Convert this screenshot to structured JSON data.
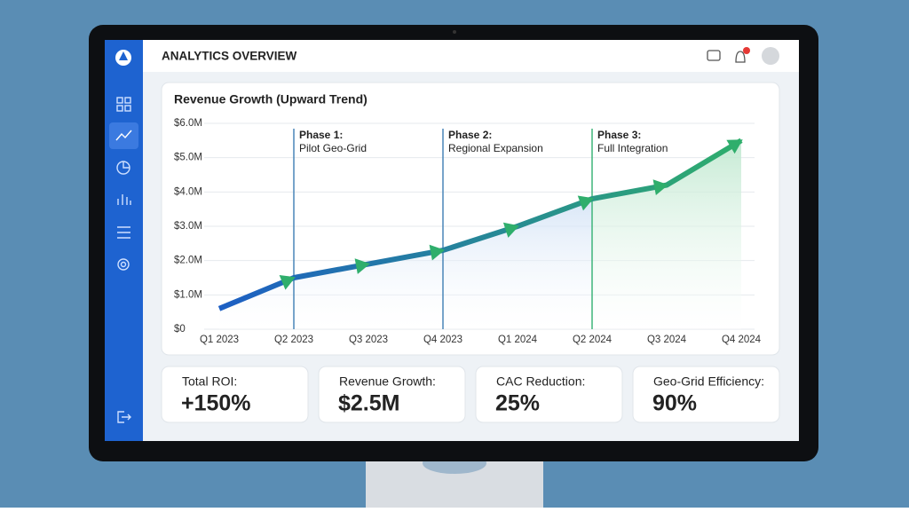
{
  "header": {
    "title": "ANALYTICS OVERVIEW"
  },
  "chart_data": {
    "type": "line",
    "title": "Revenue Growth (Upward Trend)",
    "categories": [
      "Q1 2023",
      "Q2 2023",
      "Q3 2023",
      "Q4 2023",
      "Q1 2024",
      "Q2 2024",
      "Q3 2024",
      "Q4 2024"
    ],
    "values": [
      0.6,
      1.5,
      1.9,
      2.3,
      3.0,
      3.8,
      4.2,
      5.5
    ],
    "ylim": [
      0,
      6
    ],
    "yticks": [
      {
        "value": 0,
        "label": "$0"
      },
      {
        "value": 1,
        "label": "$1.0M"
      },
      {
        "value": 2,
        "label": "$2.0M"
      },
      {
        "value": 3,
        "label": "$3.0M"
      },
      {
        "value": 4,
        "label": "$4.0M"
      },
      {
        "value": 5,
        "label": "$5.0M"
      },
      {
        "value": 6,
        "label": "$6.0M"
      }
    ],
    "grid": true,
    "line_colors": [
      "#1d5fc4",
      "#2fae6c"
    ],
    "area_colors": [
      "#cfe0f5",
      "#bfe8cf"
    ],
    "annotations": [
      {
        "x": "Q2 2023",
        "title": "Phase 1:",
        "text": "Pilot Geo-Grid",
        "color": "#4a86b8"
      },
      {
        "x": "Q4 2023",
        "title": "Phase 2:",
        "text": "Regional Expansion",
        "color": "#4a86b8"
      },
      {
        "x": "Q2 2024",
        "title": "Phase 3:",
        "text": "Full Integration",
        "color": "#3fb57a"
      }
    ]
  },
  "kpis": [
    {
      "label": "Total ROI:",
      "value": "+150%",
      "color": "#2fa65f"
    },
    {
      "label": "Revenue Growth:",
      "value": "$2.5M",
      "color": "#1d5fb0"
    },
    {
      "label": "CAC Reduction:",
      "value": "25%",
      "color": "#2fa65f"
    },
    {
      "label": "Geo-Grid Efficiency:",
      "value": "90%",
      "color": "#1d5fb0"
    }
  ]
}
